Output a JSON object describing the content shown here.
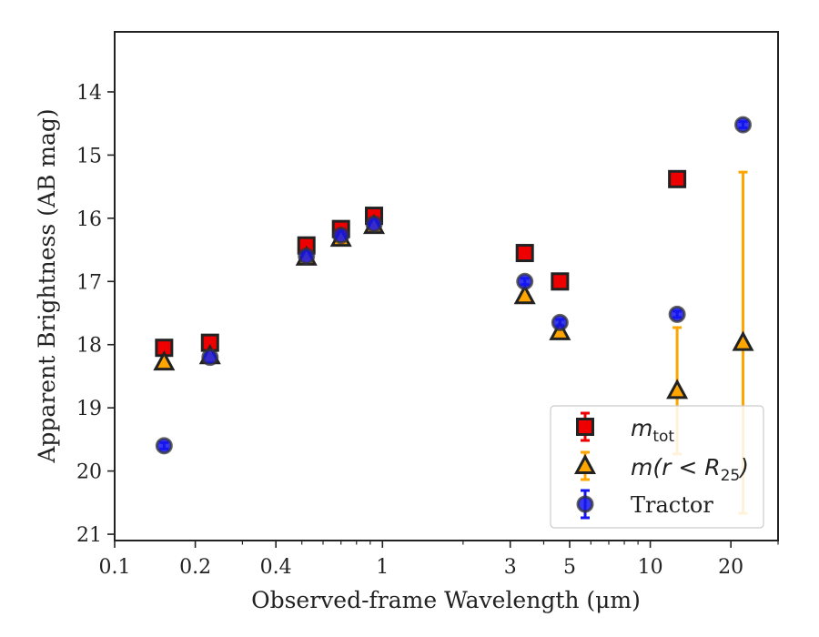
{
  "chart_data": {
    "type": "scatter",
    "title": "",
    "xlabel": "Observed-frame Wavelength (μm)",
    "ylabel": "Apparent Brightness (AB mag)",
    "x_scale": "log",
    "xlim": [
      0.1,
      30
    ],
    "ylim": [
      21.1,
      13.05
    ],
    "y_inverted": true,
    "x_ticks": [
      {
        "value": 0.1,
        "label": "0.1"
      },
      {
        "value": 0.2,
        "label": "0.2"
      },
      {
        "value": 0.4,
        "label": "0.4"
      },
      {
        "value": 1,
        "label": "1"
      },
      {
        "value": 3,
        "label": "3"
      },
      {
        "value": 5,
        "label": "5"
      },
      {
        "value": 10,
        "label": "10"
      },
      {
        "value": 20,
        "label": "20"
      }
    ],
    "y_ticks": [
      {
        "value": 14,
        "label": "14"
      },
      {
        "value": 15,
        "label": "15"
      },
      {
        "value": 16,
        "label": "16"
      },
      {
        "value": 17,
        "label": "17"
      },
      {
        "value": 18,
        "label": "18"
      },
      {
        "value": 19,
        "label": "19"
      },
      {
        "value": 20,
        "label": "20"
      },
      {
        "value": 21,
        "label": "21"
      }
    ],
    "grid": false,
    "legend_position": "lower-right",
    "series": [
      {
        "name": "m_tot",
        "legend_main": "m",
        "legend_sub": "tot",
        "marker": "square",
        "face_color": "#ee0000",
        "edge_color": "#222222",
        "error_color": "#ee0000",
        "points": [
          {
            "x": 0.153,
            "y": 18.05,
            "err": 0.05
          },
          {
            "x": 0.227,
            "y": 17.97,
            "err": 0.05
          },
          {
            "x": 0.52,
            "y": 16.43,
            "err": 0.05
          },
          {
            "x": 0.7,
            "y": 16.17,
            "err": 0.05
          },
          {
            "x": 0.93,
            "y": 15.96,
            "err": 0.05
          },
          {
            "x": 3.4,
            "y": 16.55,
            "err": 0.05
          },
          {
            "x": 4.6,
            "y": 17.0,
            "err": 0.05
          },
          {
            "x": 12.6,
            "y": 15.38,
            "err": 0.05
          }
        ]
      },
      {
        "name": "m(r < R_25)",
        "legend_main": "m(r < R",
        "legend_sub": "25",
        "legend_close": ")",
        "marker": "triangle",
        "face_color": "#ffa500",
        "edge_color": "#222222",
        "error_color": "#ffa500",
        "points": [
          {
            "x": 0.153,
            "y": 18.28,
            "err": 0.03
          },
          {
            "x": 0.227,
            "y": 18.18,
            "err": 0.03
          },
          {
            "x": 0.52,
            "y": 16.62,
            "err": 0.03
          },
          {
            "x": 0.7,
            "y": 16.32,
            "err": 0.03
          },
          {
            "x": 0.93,
            "y": 16.12,
            "err": 0.03
          },
          {
            "x": 3.4,
            "y": 17.23,
            "err": 0.05
          },
          {
            "x": 4.6,
            "y": 17.8,
            "err": 0.05
          },
          {
            "x": 12.6,
            "y": 18.73,
            "err": 1.0
          },
          {
            "x": 22.2,
            "y": 17.97,
            "err": 2.7
          }
        ]
      },
      {
        "name": "Tractor",
        "legend_main": "Tractor",
        "marker": "circle",
        "face_color": "#1515ee",
        "edge_color": "#333333",
        "error_color": "#1515ee",
        "points": [
          {
            "x": 0.153,
            "y": 19.6,
            "err": 0.05
          },
          {
            "x": 0.227,
            "y": 18.2,
            "err": 0.05
          },
          {
            "x": 0.52,
            "y": 16.6,
            "err": 0.05
          },
          {
            "x": 0.7,
            "y": 16.27,
            "err": 0.05
          },
          {
            "x": 0.93,
            "y": 16.09,
            "err": 0.05
          },
          {
            "x": 3.4,
            "y": 17.0,
            "err": 0.05
          },
          {
            "x": 4.6,
            "y": 17.65,
            "err": 0.05
          },
          {
            "x": 12.6,
            "y": 17.52,
            "err": 0.05
          },
          {
            "x": 22.2,
            "y": 14.52,
            "err": 0.05
          }
        ]
      }
    ]
  }
}
